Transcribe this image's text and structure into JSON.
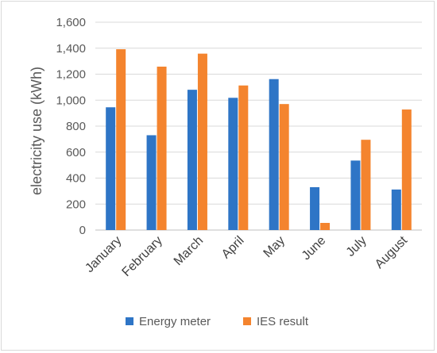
{
  "chart_data": {
    "type": "bar",
    "title": "",
    "xlabel": "",
    "ylabel": "electricity use (kWh)",
    "ylim": [
      0,
      1600
    ],
    "yticks": [
      0,
      200,
      400,
      600,
      800,
      1000,
      1200,
      1400,
      1600
    ],
    "ytick_labels": [
      "0",
      "200",
      "400",
      "600",
      "800",
      "1,000",
      "1,200",
      "1,400",
      "1,600"
    ],
    "grid": true,
    "legend": "bottom",
    "categories": [
      "January",
      "February",
      "March",
      "April",
      "May",
      "June",
      "July",
      "August"
    ],
    "series": [
      {
        "name": "Energy meter",
        "color": "#2E75C6",
        "values": [
          945,
          730,
          1080,
          1018,
          1162,
          330,
          535,
          312
        ]
      },
      {
        "name": "IES result",
        "color": "#F4842E",
        "values": [
          1392,
          1258,
          1358,
          1113,
          970,
          55,
          695,
          928
        ]
      }
    ]
  }
}
